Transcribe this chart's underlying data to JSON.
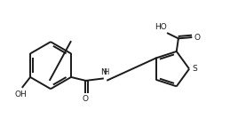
{
  "bg_color": "#ffffff",
  "line_color": "#1a1a1a",
  "text_color": "#1a1a1a",
  "bond_lw": 1.4,
  "figsize": [
    2.68,
    1.42
  ],
  "dpi": 100,
  "xlim": [
    0,
    10
  ],
  "ylim": [
    0,
    5.3
  ]
}
